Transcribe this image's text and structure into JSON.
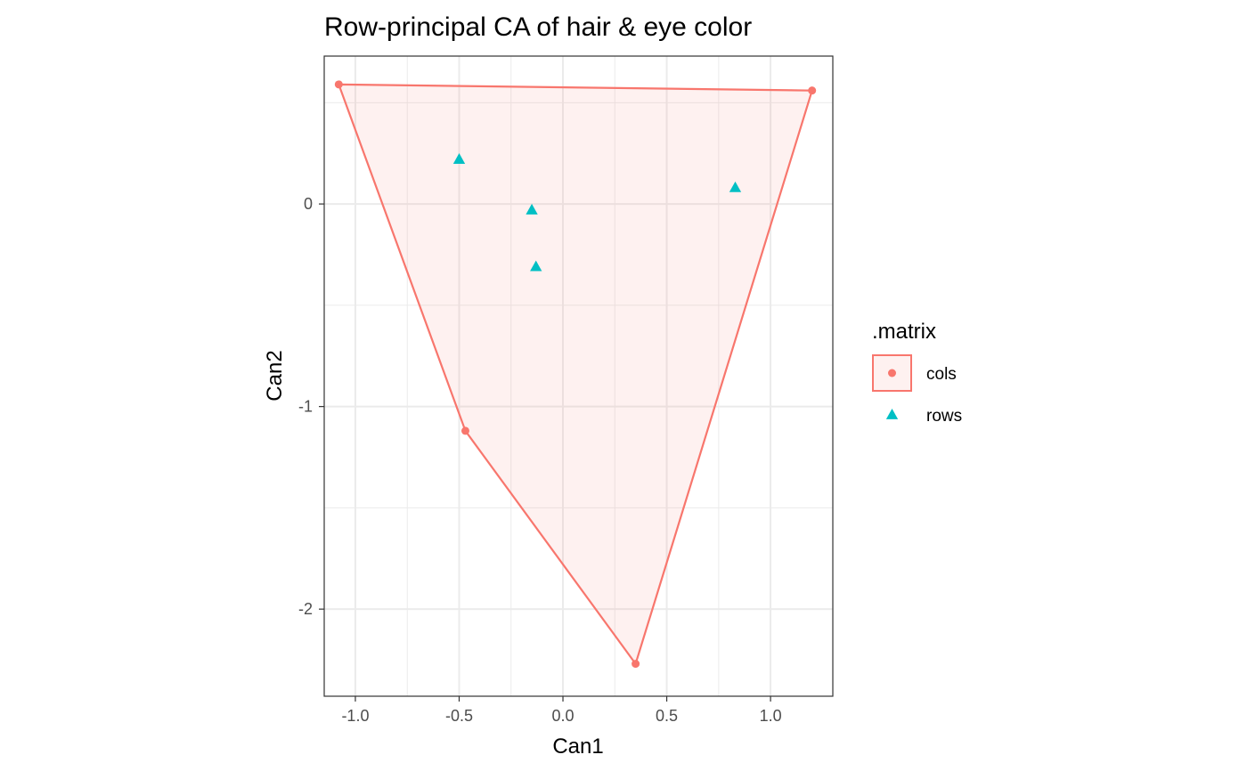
{
  "chart_data": {
    "type": "scatter",
    "title": "Row-principal CA of hair & eye color",
    "xlabel": "Can1",
    "ylabel": "Can2",
    "xlim": [
      -1.15,
      1.3
    ],
    "ylim": [
      -2.43,
      0.73
    ],
    "x_ticks": [
      {
        "value": -1.0,
        "label": "-1.0"
      },
      {
        "value": -0.5,
        "label": "-0.5"
      },
      {
        "value": 0.0,
        "label": "0.0"
      },
      {
        "value": 0.5,
        "label": "0.5"
      },
      {
        "value": 1.0,
        "label": "1.0"
      }
    ],
    "y_ticks": [
      {
        "value": 0,
        "label": "0"
      },
      {
        "value": -1,
        "label": "-1"
      },
      {
        "value": -2,
        "label": "-2"
      }
    ],
    "grid": true,
    "legend": {
      "title": ".matrix",
      "position": "right",
      "entries": [
        {
          "label": "cols",
          "shape": "circle",
          "color": "#F8766D"
        },
        {
          "label": "rows",
          "shape": "triangle",
          "color": "#00BFC4"
        }
      ]
    },
    "series": [
      {
        "name": "cols",
        "marker": "circle",
        "color": "#F8766D",
        "hull": true,
        "hull_fill": "#F8766D",
        "points": [
          {
            "x": -1.08,
            "y": 0.59
          },
          {
            "x": 1.2,
            "y": 0.56
          },
          {
            "x": 0.35,
            "y": -2.27
          },
          {
            "x": -0.47,
            "y": -1.12
          }
        ]
      },
      {
        "name": "rows",
        "marker": "triangle",
        "color": "#00BFC4",
        "points": [
          {
            "x": -0.5,
            "y": 0.22
          },
          {
            "x": 0.83,
            "y": 0.08
          },
          {
            "x": -0.15,
            "y": -0.03
          },
          {
            "x": -0.13,
            "y": -0.31
          }
        ]
      }
    ]
  }
}
